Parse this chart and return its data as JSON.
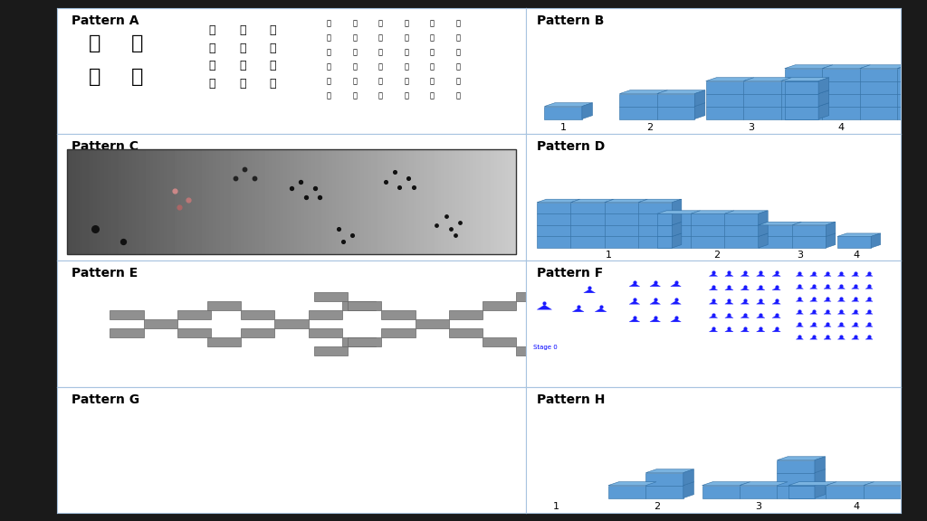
{
  "bg_color": "#1a1a1a",
  "panel_bg": "#ffffff",
  "border_color": "#a8c4e0",
  "cube_color": "#5b9bd5",
  "cube_edge_color": "#2e6da4",
  "cube_top_color": "#7ab3e0",
  "cube_side_color": "#4a85bb",
  "gray_sq_color": "#909090",
  "gray_sq_edge": "#666666",
  "blue_tri_color": "#1a1aff",
  "pattern_title_fontsize": 10,
  "label_fontsize": 8,
  "patterns": [
    {
      "id": "A",
      "title": "Pattern A",
      "row": 0,
      "col": 0
    },
    {
      "id": "B",
      "title": "Pattern B",
      "row": 0,
      "col": 1
    },
    {
      "id": "C",
      "title": "Pattern C",
      "row": 1,
      "col": 0
    },
    {
      "id": "D",
      "title": "Pattern D",
      "row": 1,
      "col": 1
    },
    {
      "id": "E",
      "title": "Pattern E",
      "row": 2,
      "col": 0
    },
    {
      "id": "F",
      "title": "Pattern F",
      "row": 2,
      "col": 1
    },
    {
      "id": "G",
      "title": "Pattern G",
      "row": 3,
      "col": 0
    },
    {
      "id": "H",
      "title": "Pattern H",
      "row": 3,
      "col": 1
    }
  ]
}
